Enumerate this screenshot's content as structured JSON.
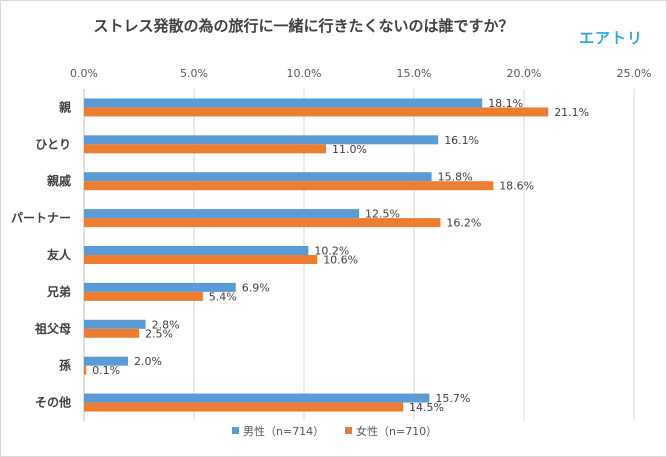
{
  "brand": {
    "name": "エアトリ"
  },
  "chart_data": {
    "type": "bar",
    "orientation": "horizontal",
    "title": "ストレス発散の為の旅行に一緒に行きたくないのは誰ですか？",
    "categories": [
      "親",
      "ひとり",
      "親戚",
      "パートナー",
      "友人",
      "兄弟",
      "祖父母",
      "孫",
      "その他"
    ],
    "series": [
      {
        "name": "男性（n=714）",
        "color": "#5b9bd5",
        "values": [
          18.1,
          16.1,
          15.8,
          12.5,
          10.2,
          6.9,
          2.8,
          2.0,
          15.7
        ]
      },
      {
        "name": "女性（n=710）",
        "color": "#ed7d31",
        "values": [
          21.1,
          11.0,
          18.6,
          16.2,
          10.6,
          5.4,
          2.5,
          0.1,
          14.5
        ]
      }
    ],
    "xlim": [
      0,
      25
    ],
    "xticks": [
      "0.0%",
      "5.0%",
      "10.0%",
      "15.0%",
      "20.0%",
      "25.0%"
    ],
    "value_format": "percent_1dp",
    "grid": true,
    "legend_position": "bottom"
  }
}
